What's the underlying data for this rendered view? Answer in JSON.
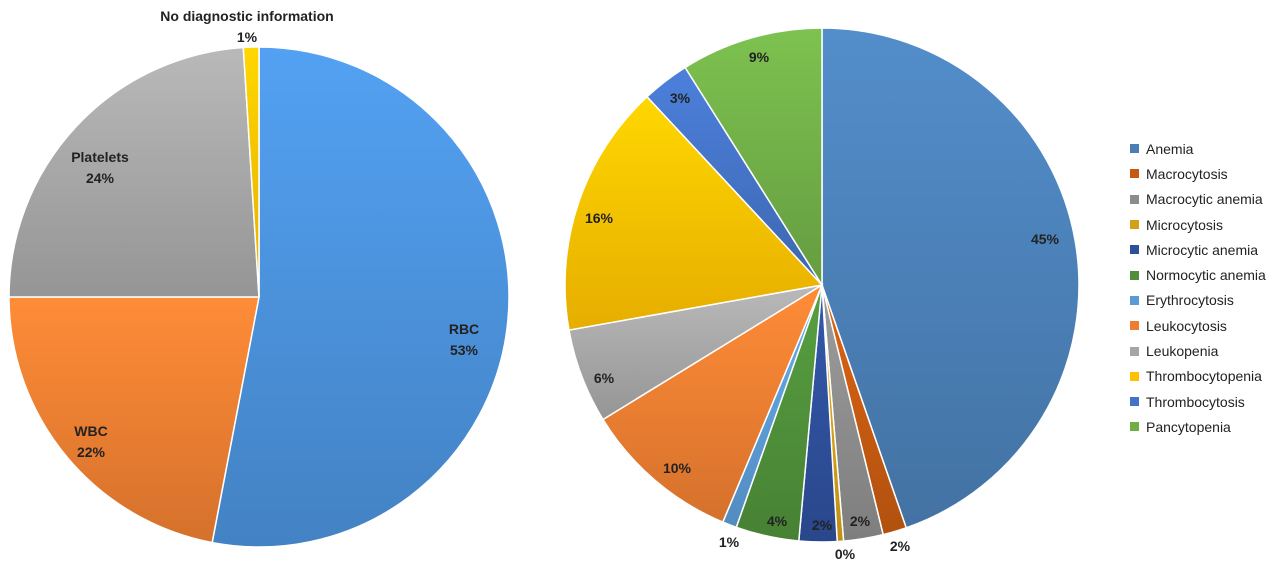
{
  "chart_data": [
    {
      "type": "pie",
      "title": "",
      "slices": [
        {
          "name": "RBC",
          "value": 53,
          "label": "53%",
          "color": "#4a90d9"
        },
        {
          "name": "WBC",
          "value": 22,
          "label": "22%",
          "color": "#ed7d31"
        },
        {
          "name": "Platelets",
          "value": 24,
          "label": "24%",
          "color": "#a5a5a5"
        },
        {
          "name": "No diagnostic information",
          "value": 1,
          "label": "1%",
          "color": "#ffc000"
        }
      ]
    },
    {
      "type": "pie",
      "title": "",
      "legend_position": "right",
      "slices": [
        {
          "name": "Anemia",
          "value": 45,
          "label": "45%",
          "color": "#4a7fb5"
        },
        {
          "name": "Macrocytosis",
          "value": 1.5,
          "label": "2%",
          "color": "#c55a11"
        },
        {
          "name": "Macrocytic anemia",
          "value": 2.5,
          "label": "2%",
          "color": "#8c8c8c"
        },
        {
          "name": "Microcytosis",
          "value": 0.4,
          "label": "0%",
          "color": "#d4a017"
        },
        {
          "name": "Microcytic anemia",
          "value": 2.4,
          "label": "2%",
          "color": "#2e4f9a"
        },
        {
          "name": "Normocytic anemia",
          "value": 4,
          "label": "4%",
          "color": "#4f8f3a"
        },
        {
          "name": "Erythrocytosis",
          "value": 0.9,
          "label": "1%",
          "color": "#5b9bd5"
        },
        {
          "name": "Leukocytosis",
          "value": 10,
          "label": "10%",
          "color": "#ed7d31"
        },
        {
          "name": "Leukopenia",
          "value": 6,
          "label": "6%",
          "color": "#a5a5a5"
        },
        {
          "name": "Thrombocytopenia",
          "value": 16,
          "label": "16%",
          "color": "#ffc000"
        },
        {
          "name": "Thrombocytosis",
          "value": 3,
          "label": "3%",
          "color": "#4472c4"
        },
        {
          "name": "Pancytopenia",
          "value": 9,
          "label": "9%",
          "color": "#70ad47"
        }
      ]
    }
  ]
}
